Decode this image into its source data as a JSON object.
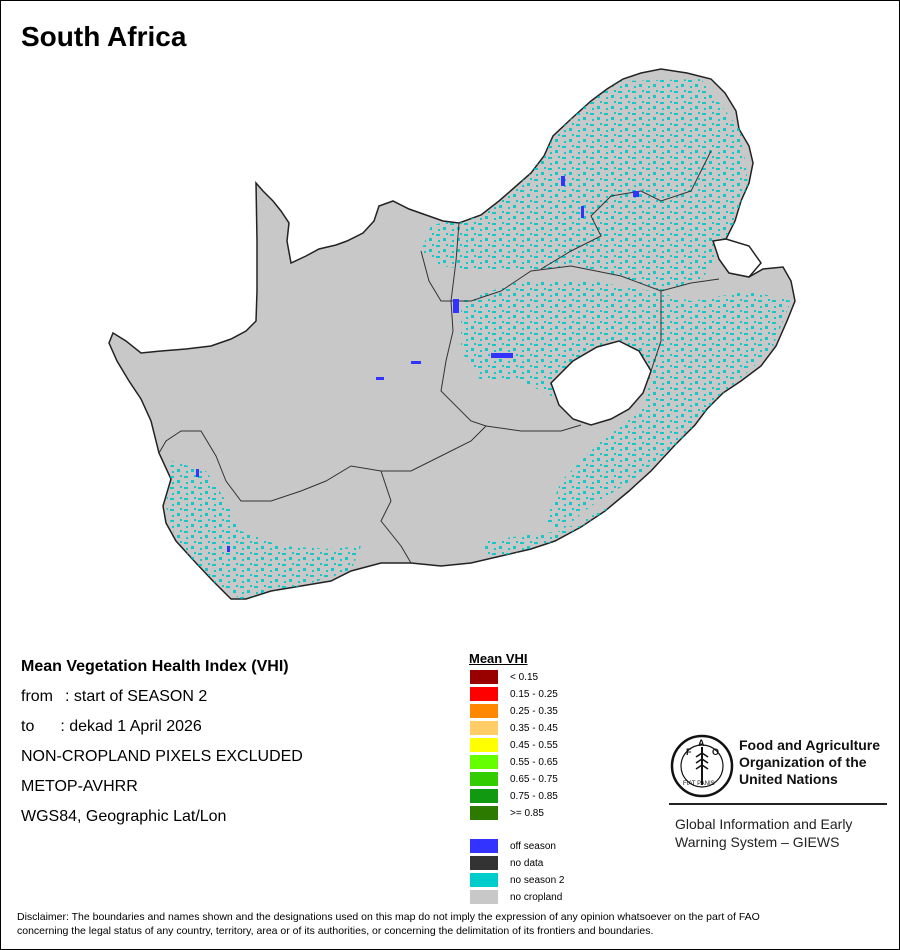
{
  "title": "South Africa",
  "info": {
    "heading": "Mean Vegetation Health Index (VHI)",
    "from_label": "from",
    "from_value": ": start of SEASON 2",
    "to_label": "to",
    "to_value": ": dekad 1 April 2026",
    "note": "NON-CROPLAND PIXELS EXCLUDED",
    "sensor": "METOP-AVHRR",
    "projection": "WGS84, Geographic Lat/Lon"
  },
  "legend": {
    "title": "Mean VHI",
    "classes": [
      {
        "label": "< 0.15",
        "color": "#990000"
      },
      {
        "label": "0.15 - 0.25",
        "color": "#ff0000"
      },
      {
        "label": "0.25 - 0.35",
        "color": "#ff8800"
      },
      {
        "label": "0.35 - 0.45",
        "color": "#ffcc66"
      },
      {
        "label": "0.45 - 0.55",
        "color": "#ffff00"
      },
      {
        "label": "0.55 - 0.65",
        "color": "#66ff00"
      },
      {
        "label": "0.65 - 0.75",
        "color": "#33cc00"
      },
      {
        "label": "0.75 - 0.85",
        "color": "#119911"
      },
      {
        "label": ">= 0.85",
        "color": "#2d7a00"
      }
    ],
    "extras": [
      {
        "label": "off season",
        "color": "#3333ff"
      },
      {
        "label": "no data",
        "color": "#333333"
      },
      {
        "label": "no season 2",
        "color": "#00cccc"
      },
      {
        "label": "no cropland",
        "color": "#c8c8c8"
      }
    ]
  },
  "map": {
    "land_color": "#c8c8c8",
    "border_color": "#222222",
    "season2_color": "#00c8c8",
    "offseason_color": "#3333ff"
  },
  "logo": {
    "org_line1": "Food and Agriculture",
    "org_line2": "Organization of the",
    "org_line3": "United Nations",
    "giews_line1": "Global Information and Early",
    "giews_line2": "Warning System – GIEWS",
    "letters": "FAO",
    "motto": "FIAT PANIS"
  },
  "disclaimer_line1": "Disclaimer: The boundaries and names shown and the designations used on this map do not imply the expression of any opinion whatsoever on the part of FAO",
  "disclaimer_line2": "concerning the legal status of any country, territory, area or of its authorities, or concerning the delimitation of its frontiers and boundaries."
}
